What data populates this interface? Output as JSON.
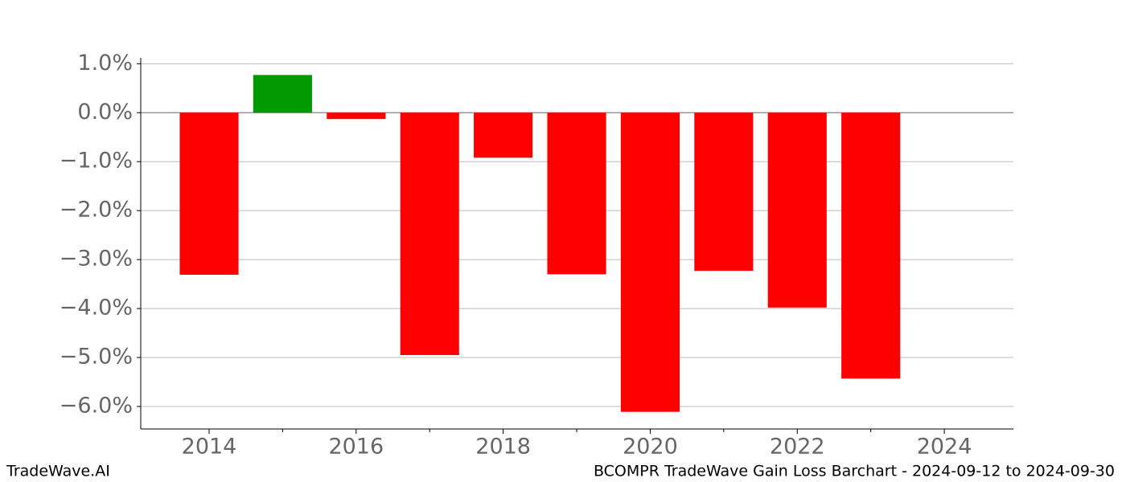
{
  "chart_data": {
    "type": "bar",
    "x": [
      2014,
      2015,
      2016,
      2017,
      2018,
      2019,
      2020,
      2021,
      2022,
      2023
    ],
    "values": [
      -3.31,
      0.77,
      -0.13,
      -4.95,
      -0.92,
      -3.3,
      -6.11,
      -3.23,
      -3.98,
      -5.43
    ],
    "positive_color": "#009900",
    "negative_color": "#ff0000",
    "xlim": [
      2013.07,
      2024.94
    ],
    "xticks": [
      2014,
      2016,
      2018,
      2020,
      2022,
      2024
    ],
    "xminorticks": [
      2015,
      2017,
      2019,
      2021,
      2023
    ],
    "ylim": [
      -6.46,
      1.12
    ],
    "yticks": [
      {
        "value": 1,
        "label": "1.0%"
      },
      {
        "value": 0,
        "label": "0.0%"
      },
      {
        "value": -1,
        "label": "−1.0%"
      },
      {
        "value": -2,
        "label": "−2.0%"
      },
      {
        "value": -3,
        "label": "−3.0%"
      },
      {
        "value": -4,
        "label": "−4.0%"
      },
      {
        "value": -5,
        "label": "−5.0%"
      },
      {
        "value": -6,
        "label": "−6.0%"
      }
    ],
    "grid": true,
    "footer_left": "TradeWave.AI",
    "footer_right": "BCOMPR TradeWave Gain Loss Barchart - 2024-09-12 to 2024-09-30"
  }
}
